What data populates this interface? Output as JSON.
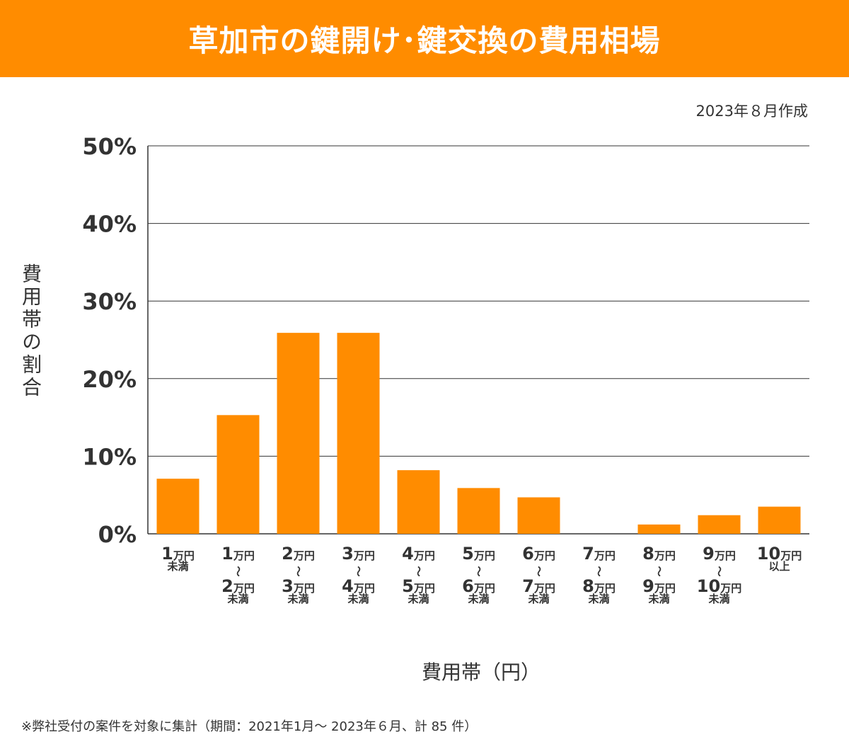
{
  "header": {
    "title": "草加市の鍵開け･鍵交換の費用相場"
  },
  "date_note": "2023年８月作成",
  "footnote": "※弊社受付の案件を対象に集計（期間：2021年1月～ 2023年６月、計 85 件）",
  "chart_data": {
    "type": "bar",
    "title": "草加市の鍵開け･鍵交換の費用相場",
    "xlabel": "費用帯（円）",
    "ylabel": "費用帯の割合",
    "ylim": [
      0,
      50
    ],
    "yticks": [
      "0%",
      "10%",
      "20%",
      "30%",
      "40%",
      "50%"
    ],
    "grid": true,
    "bar_color": "#ff8c00",
    "categories": [
      {
        "label": "1万円未満",
        "parts": [
          [
            "1",
            "万円"
          ],
          [
            "",
            "未満"
          ]
        ]
      },
      {
        "label": "1万円～2万円未満",
        "parts": [
          [
            "1",
            "万円"
          ],
          [
            "～",
            ""
          ],
          [
            "2",
            "万円"
          ],
          [
            "",
            "未満"
          ]
        ]
      },
      {
        "label": "2万円～3万円未満",
        "parts": [
          [
            "2",
            "万円"
          ],
          [
            "～",
            ""
          ],
          [
            "3",
            "万円"
          ],
          [
            "",
            "未満"
          ]
        ]
      },
      {
        "label": "3万円～4万円未満",
        "parts": [
          [
            "3",
            "万円"
          ],
          [
            "～",
            ""
          ],
          [
            "4",
            "万円"
          ],
          [
            "",
            "未満"
          ]
        ]
      },
      {
        "label": "4万円～5万円未満",
        "parts": [
          [
            "4",
            "万円"
          ],
          [
            "～",
            ""
          ],
          [
            "5",
            "万円"
          ],
          [
            "",
            "未満"
          ]
        ]
      },
      {
        "label": "5万円～6万円未満",
        "parts": [
          [
            "5",
            "万円"
          ],
          [
            "～",
            ""
          ],
          [
            "6",
            "万円"
          ],
          [
            "",
            "未満"
          ]
        ]
      },
      {
        "label": "6万円～7万円未満",
        "parts": [
          [
            "6",
            "万円"
          ],
          [
            "～",
            ""
          ],
          [
            "7",
            "万円"
          ],
          [
            "",
            "未満"
          ]
        ]
      },
      {
        "label": "7万円～8万円未満",
        "parts": [
          [
            "7",
            "万円"
          ],
          [
            "～",
            ""
          ],
          [
            "8",
            "万円"
          ],
          [
            "",
            "未満"
          ]
        ]
      },
      {
        "label": "8万円～9万円未満",
        "parts": [
          [
            "8",
            "万円"
          ],
          [
            "～",
            ""
          ],
          [
            "9",
            "万円"
          ],
          [
            "",
            "未満"
          ]
        ]
      },
      {
        "label": "9万円～10万円未満",
        "parts": [
          [
            "9",
            "万円"
          ],
          [
            "～",
            ""
          ],
          [
            "10",
            "万円"
          ],
          [
            "",
            "未満"
          ]
        ]
      },
      {
        "label": "10万円以上",
        "parts": [
          [
            "10",
            "万円"
          ],
          [
            "",
            "以上"
          ]
        ]
      }
    ],
    "values": [
      7.1,
      15.3,
      25.9,
      25.9,
      8.2,
      5.9,
      4.7,
      0,
      1.2,
      2.4,
      3.5
    ]
  }
}
